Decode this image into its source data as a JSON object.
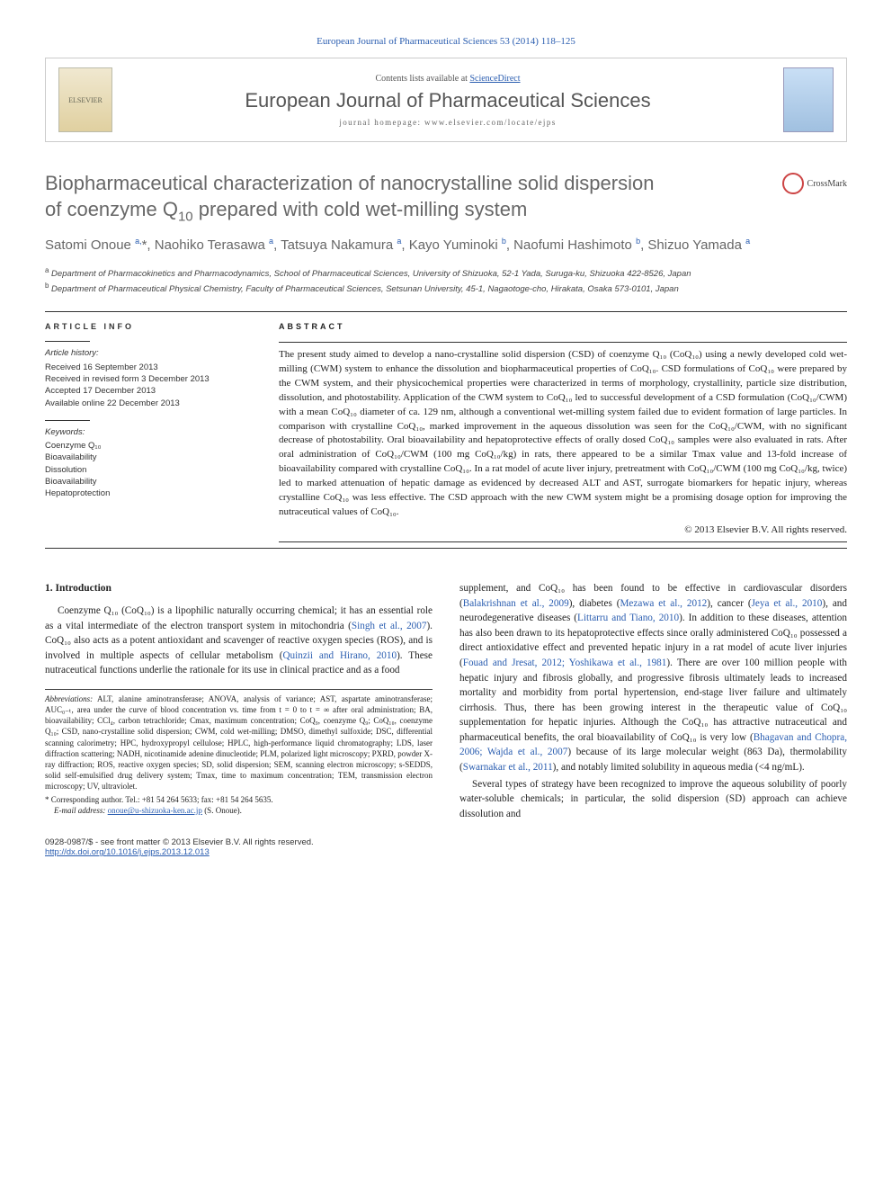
{
  "citation": "European Journal of Pharmaceutical Sciences 53 (2014) 118–125",
  "header": {
    "contents_prefix": "Contents lists available at ",
    "contents_link": "ScienceDirect",
    "journal_title": "European Journal of Pharmaceutical Sciences",
    "homepage_prefix": "journal homepage: ",
    "homepage_url": "www.elsevier.com/locate/ejps",
    "publisher": "ELSEVIER"
  },
  "crossmark_label": "CrossMark",
  "title_line1": "Biopharmaceutical characterization of nanocrystalline solid dispersion",
  "title_line2_pre": "of coenzyme Q",
  "title_line2_sub": "10",
  "title_line2_post": " prepared with cold wet-milling system",
  "authors_html": "Satomi Onoue <sup>a,</sup>*, Naohiko Terasawa <sup>a</sup>, Tatsuya Nakamura <sup>a</sup>, Kayo Yuminoki <sup>b</sup>, Naofumi Hashimoto <sup>b</sup>, Shizuo Yamada <sup>a</sup>",
  "affiliations": {
    "a": "Department of Pharmacokinetics and Pharmacodynamics, School of Pharmaceutical Sciences, University of Shizuoka, 52-1 Yada, Suruga-ku, Shizuoka 422-8526, Japan",
    "b": "Department of Pharmaceutical Physical Chemistry, Faculty of Pharmaceutical Sciences, Setsunan University, 45-1, Nagaotoge-cho, Hirakata, Osaka 573-0101, Japan"
  },
  "info": {
    "head": "ARTICLE INFO",
    "history_label": "Article history:",
    "history": [
      "Received 16 September 2013",
      "Received in revised form 3 December 2013",
      "Accepted 17 December 2013",
      "Available online 22 December 2013"
    ],
    "keywords_label": "Keywords:",
    "keywords": [
      "Coenzyme Q₁₀",
      "Bioavailability",
      "Dissolution",
      "Bioavailability",
      "Hepatoprotection"
    ]
  },
  "abstract": {
    "head": "ABSTRACT",
    "text": "The present study aimed to develop a nano-crystalline solid dispersion (CSD) of coenzyme Q₁₀ (CoQ₁₀) using a newly developed cold wet-milling (CWM) system to enhance the dissolution and biopharmaceutical properties of CoQ₁₀. CSD formulations of CoQ₁₀ were prepared by the CWM system, and their physicochemical properties were characterized in terms of morphology, crystallinity, particle size distribution, dissolution, and photostability. Application of the CWM system to CoQ₁₀ led to successful development of a CSD formulation (CoQ₁₀/CWM) with a mean CoQ₁₀ diameter of ca. 129 nm, although a conventional wet-milling system failed due to evident formation of large particles. In comparison with crystalline CoQ₁₀, marked improvement in the aqueous dissolution was seen for the CoQ₁₀/CWM, with no significant decrease of photostability. Oral bioavailability and hepatoprotective effects of orally dosed CoQ₁₀ samples were also evaluated in rats. After oral administration of CoQ₁₀/CWM (100 mg CoQ₁₀/kg) in rats, there appeared to be a similar Tmax value and 13-fold increase of bioavailability compared with crystalline CoQ₁₀. In a rat model of acute liver injury, pretreatment with CoQ₁₀/CWM (100 mg CoQ₁₀/kg, twice) led to marked attenuation of hepatic damage as evidenced by decreased ALT and AST, surrogate biomarkers for hepatic injury, whereas crystalline CoQ₁₀ was less effective. The CSD approach with the new CWM system might be a promising dosage option for improving the nutraceutical values of CoQ₁₀.",
    "copyright": "© 2013 Elsevier B.V. All rights reserved."
  },
  "section1": {
    "head": "1. Introduction",
    "para1": "Coenzyme Q₁₀ (CoQ₁₀) is a lipophilic naturally occurring chemical; it has an essential role as a vital intermediate of the electron transport system in mitochondria (Singh et al., 2007). CoQ₁₀ also acts as a potent antioxidant and scavenger of reactive oxygen species (ROS), and is involved in multiple aspects of cellular metabolism (Quinzii and Hirano, 2010). These nutraceutical functions underlie the rationale for its use in clinical practice and as a food",
    "para2a": "supplement, and CoQ₁₀ has been found to be effective in cardiovascular disorders (Balakrishnan et al., 2009), diabetes (Mezawa et al., 2012), cancer (Jeya et al., 2010), and neurodegenerative diseases (Littarru and Tiano, 2010). In addition to these diseases, attention has also been drawn to its hepatoprotective effects since orally administered CoQ₁₀ possessed a direct antioxidative effect and prevented hepatic injury in a rat model of acute liver injuries (Fouad and Jresat, 2012; Yoshikawa et al., 1981). There are over 100 million people with hepatic injury and fibrosis globally, and progressive fibrosis ultimately leads to increased mortality and morbidity from portal hypertension, end-stage liver failure and ultimately cirrhosis. Thus, there has been growing interest in the therapeutic value of CoQ₁₀ supplementation for hepatic injuries. Although the CoQ₁₀ has attractive nutraceutical and pharmaceutical benefits, the oral bioavailability of CoQ₁₀ is very low (Bhagavan and Chopra, 2006; Wajda et al., 2007) because of its large molecular weight (863 Da), thermolability (Swarnakar et al., 2011), and notably limited solubility in aqueous media (<4 ng/mL).",
    "para2b": "Several types of strategy have been recognized to improve the aqueous solubility of poorly water-soluble chemicals; in particular, the solid dispersion (SD) approach can achieve dissolution and"
  },
  "footnotes": {
    "abbr_label": "Abbreviations:",
    "abbr_text": " ALT, alanine aminotransferase; ANOVA, analysis of variance; AST, aspartate aminotransferase; AUC₀₋ₜ, area under the curve of blood concentration vs. time from t = 0 to t = ∞ after oral administration; BA, bioavailability; CCl₄, carbon tetrachloride; Cmax, maximum concentration; CoQ₉, coenzyme Q₉; CoQ₁₀, coenzyme Q₁₀; CSD, nano-crystalline solid dispersion; CWM, cold wet-milling; DMSO, dimethyl sulfoxide; DSC, differential scanning calorimetry; HPC, hydroxypropyl cellulose; HPLC, high-performance liquid chromatography; LDS, laser diffraction scattering; NADH, nicotinamide adenine dinucleotide; PLM, polarized light microscopy; PXRD, powder X-ray diffraction; ROS, reactive oxygen species; SD, solid dispersion; SEM, scanning electron microscopy; s-SEDDS, solid self-emulsified drug delivery system; Tmax, time to maximum concentration; TEM, transmission electron microscopy; UV, ultraviolet.",
    "corr_label": "* Corresponding author. Tel.: +81 54 264 5633; fax: +81 54 264 5635.",
    "email_label": "E-mail address:",
    "email": "onoue@u-shizuoka-ken.ac.jp",
    "email_suffix": " (S. Onoue)."
  },
  "footer": {
    "issn": "0928-0987/$ - see front matter © 2013 Elsevier B.V. All rights reserved.",
    "doi_label": "http://dx.doi.org/",
    "doi": "10.1016/j.ejps.2013.12.013"
  },
  "colors": {
    "link": "#2a5db0",
    "heading": "#676767",
    "text": "#222222",
    "border": "#cccccc"
  }
}
